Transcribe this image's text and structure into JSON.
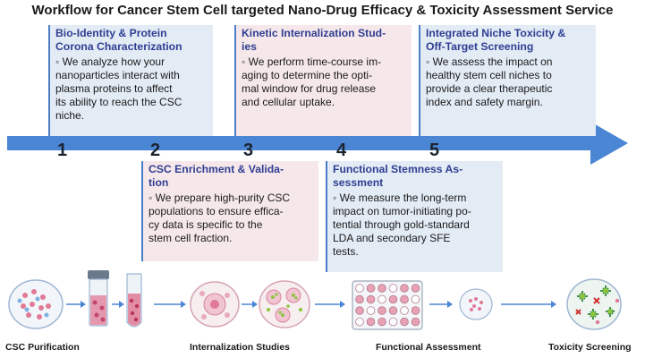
{
  "title": "Workflow for Cancer Stem Cell targeted Nano-Drug Efficacy & Toxicity Assessment Service",
  "steps": [
    {
      "number": "1",
      "title_lines": [
        "Bio-Identity & Protein",
        "Corona Characterization"
      ],
      "body_lines": [
        "◦ We analyze how your",
        "nanoparticles interact with",
        "plasma proteins to affect",
        "its ability to reach the CSC",
        "niche."
      ]
    },
    {
      "number": "2",
      "title_lines": [
        "CSC Enrichment & Valida-",
        "tion"
      ],
      "body_lines": [
        "◦ We prepare high-purity CSC",
        "populations to ensure effica-",
        "cy data is specific to the",
        "stem cell fraction."
      ]
    },
    {
      "number": "3",
      "title_lines": [
        "Kinetic Internalization Stud-",
        "ies"
      ],
      "body_lines": [
        "◦ We perform time-course im-",
        "aging to determine the opti-",
        "mal window for drug release",
        "and cellular uptake."
      ]
    },
    {
      "number": "4",
      "title_lines": [
        "Functional Stemness As-",
        "sessment"
      ],
      "body_lines": [
        "◦ We measure the long-term",
        "impact on tumor-initiating po-",
        "tential through gold-standard",
        "LDA and secondary SFE",
        "tests."
      ]
    },
    {
      "number": "5",
      "title_lines": [
        "Integrated Niche Toxicity &",
        "Off-Target Screening"
      ],
      "body_lines": [
        "◦  We assess the impact on",
        "healthy stem cell niches to",
        "provide a clear therapeutic",
        "index and safety margin."
      ]
    }
  ],
  "captions": [
    "CSC Purification",
    "Internalization Studies",
    "Functional Assessment",
    "Toxicity Screening"
  ],
  "colors": {
    "arrow": "#4a86d4",
    "title_text": "#2e3e92",
    "card_blue": "#e3ebf5",
    "card_pink": "#f6e8ea",
    "cell_pink": "#e07a96",
    "cell_green": "#8cc63f"
  }
}
